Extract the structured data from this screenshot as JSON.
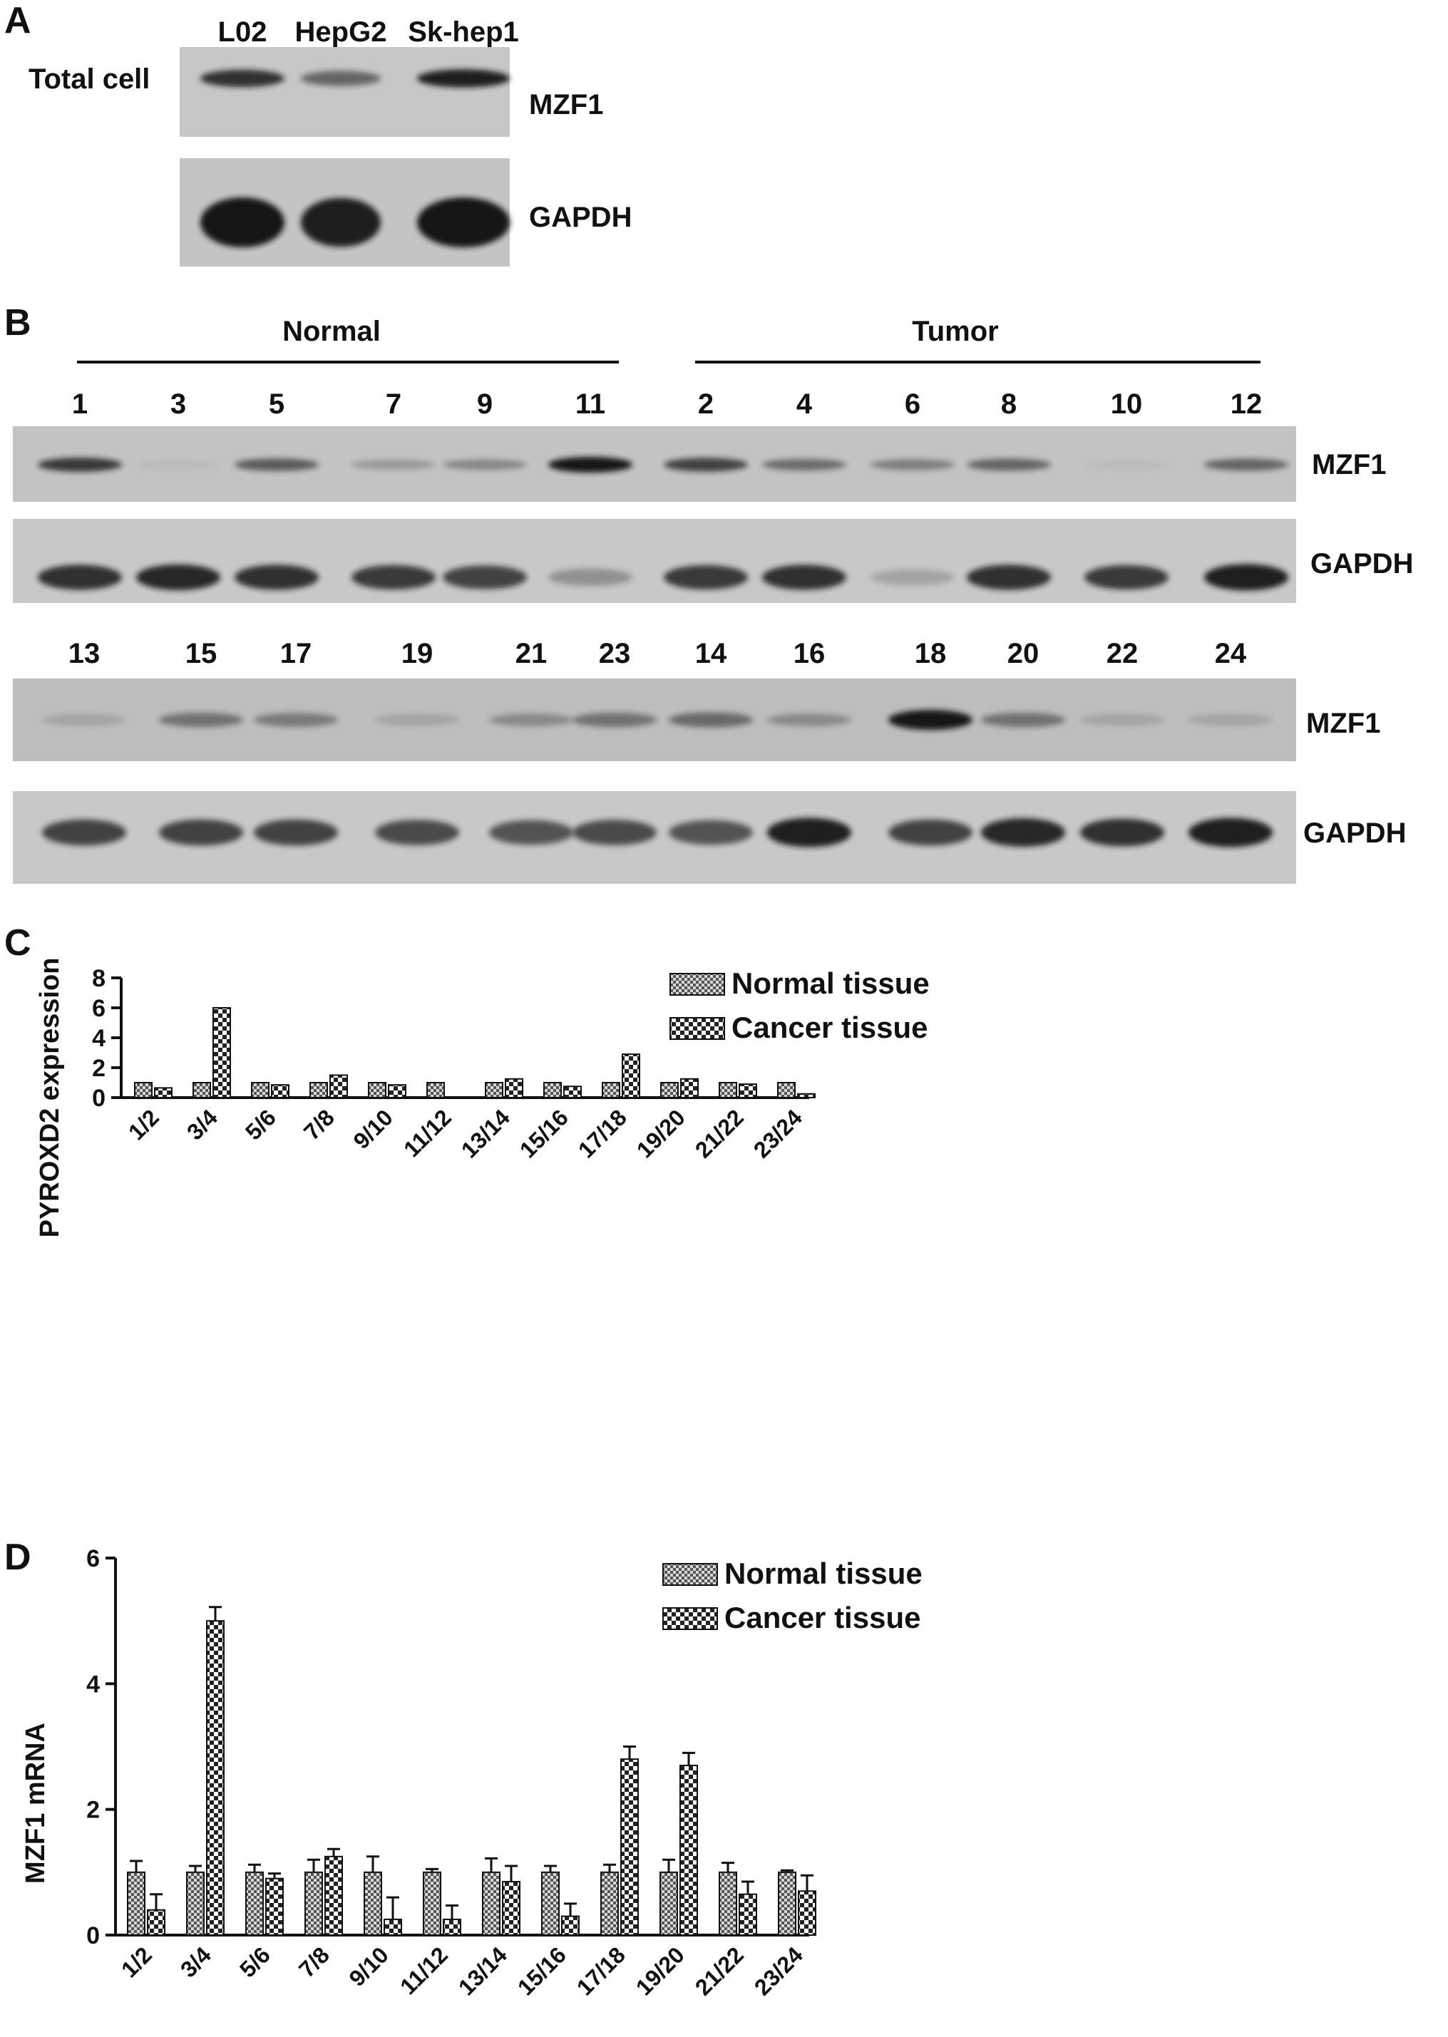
{
  "panelA": {
    "letter": "A",
    "lanes": [
      "L02",
      "HepG2",
      "Sk-hep1"
    ],
    "left_label": "Total cell",
    "rows": [
      {
        "label": "MZF1",
        "intensity": [
          0.85,
          0.55,
          0.95
        ]
      },
      {
        "label": "GAPDH",
        "intensity": [
          1.0,
          0.95,
          1.0
        ]
      }
    ]
  },
  "panelB": {
    "letter": "B",
    "groups": [
      "Normal",
      "Tumor"
    ],
    "blocks": [
      {
        "lanes": [
          "1",
          "3",
          "5",
          "7",
          "9",
          "11",
          "2",
          "4",
          "6",
          "8",
          "10",
          "12"
        ],
        "rows": [
          {
            "label": "MZF1",
            "intensity": [
              0.8,
              0.05,
              0.6,
              0.25,
              0.35,
              1.0,
              0.75,
              0.5,
              0.4,
              0.55,
              0.05,
              0.55
            ]
          },
          {
            "label": "GAPDH",
            "intensity": [
              0.85,
              0.9,
              0.85,
              0.8,
              0.75,
              0.3,
              0.8,
              0.85,
              0.2,
              0.85,
              0.8,
              0.95
            ]
          }
        ]
      },
      {
        "lanes": [
          "13",
          "15",
          "17",
          "19",
          "21",
          "23",
          "14",
          "16",
          "18",
          "20",
          "22",
          "24"
        ],
        "rows": [
          {
            "label": "MZF1",
            "intensity": [
              0.15,
              0.45,
              0.4,
              0.15,
              0.3,
              0.45,
              0.5,
              0.3,
              1.0,
              0.45,
              0.15,
              0.15
            ]
          },
          {
            "label": "GAPDH",
            "intensity": [
              0.75,
              0.75,
              0.75,
              0.7,
              0.65,
              0.7,
              0.65,
              0.95,
              0.75,
              0.9,
              0.85,
              0.95
            ]
          }
        ]
      }
    ]
  },
  "chart_data": [
    {
      "panel": "C",
      "type": "bar",
      "ylabel": "PYROXD2 expression",
      "ylim": [
        0,
        8
      ],
      "yticks": [
        0,
        2,
        4,
        6,
        8
      ],
      "categories": [
        "1/2",
        "3/4",
        "5/6",
        "7/8",
        "9/10",
        "11/12",
        "13/14",
        "15/16",
        "17/18",
        "19/20",
        "21/22",
        "23/24"
      ],
      "series": [
        {
          "name": "Normal tissue",
          "values": [
            1,
            1,
            1,
            1,
            1,
            1,
            1,
            1,
            1,
            1,
            1,
            1
          ]
        },
        {
          "name": "Cancer tissue",
          "values": [
            0.65,
            6.0,
            0.85,
            1.5,
            0.85,
            0,
            1.25,
            0.75,
            2.9,
            1.25,
            0.9,
            0.25
          ]
        }
      ],
      "legend": "top-right"
    },
    {
      "panel": "D",
      "type": "bar",
      "ylabel": "MZF1 mRNA",
      "ylim": [
        0,
        6
      ],
      "yticks": [
        0,
        2,
        4,
        6
      ],
      "categories": [
        "1/2",
        "3/4",
        "5/6",
        "7/8",
        "9/10",
        "11/12",
        "13/14",
        "15/16",
        "17/18",
        "19/20",
        "21/22",
        "23/24"
      ],
      "series": [
        {
          "name": "Normal tissue",
          "values": [
            1,
            1,
            1,
            1,
            1,
            1,
            1,
            1,
            1,
            1,
            1,
            1
          ],
          "errors": [
            0.18,
            0.1,
            0.12,
            0.2,
            0.25,
            0.05,
            0.22,
            0.1,
            0.12,
            0.2,
            0.15,
            0.03
          ]
        },
        {
          "name": "Cancer tissue",
          "values": [
            0.4,
            5.0,
            0.9,
            1.25,
            0.25,
            0.25,
            0.85,
            0.3,
            2.8,
            2.7,
            0.65,
            0.7
          ],
          "errors": [
            0.25,
            0.22,
            0.08,
            0.12,
            0.35,
            0.22,
            0.25,
            0.2,
            0.2,
            0.2,
            0.2,
            0.25
          ]
        }
      ],
      "legend": "top-right"
    }
  ]
}
